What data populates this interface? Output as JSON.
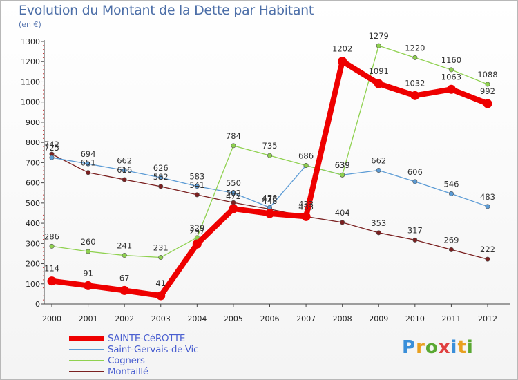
{
  "header": {
    "title": "Evolution du Montant de la Dette par Habitant",
    "subtitle": "(en €)"
  },
  "brand": {
    "letters": [
      "P",
      "r",
      "o",
      "x",
      "i",
      "t",
      "i"
    ],
    "colors": [
      "#3a8fd9",
      "#e8a020",
      "#5aa832",
      "#e04040",
      "#3a8fd9",
      "#e8a020",
      "#5aa832"
    ]
  },
  "chart_data": {
    "type": "line",
    "title": "Evolution du Montant de la Dette par Habitant",
    "ylabel": "(en €)",
    "x": [
      "2000",
      "2001",
      "2002",
      "2003",
      "2004",
      "2005",
      "2006",
      "2007",
      "2008",
      "2009",
      "2010",
      "2011",
      "2012"
    ],
    "ylim": [
      0,
      1300
    ],
    "yticks": [
      0,
      100,
      200,
      300,
      400,
      500,
      600,
      700,
      800,
      900,
      1000,
      1100,
      1200,
      1300
    ],
    "grid": false,
    "legend": "bottom-left",
    "series": [
      {
        "name": "Montaillé",
        "color": "#7a2020",
        "values": [
          742,
          651,
          616,
          582,
          541,
          502,
          470,
          433,
          404,
          353,
          317,
          269,
          222
        ],
        "labels": [
          "742",
          "651",
          "616",
          "582",
          "541",
          "502",
          "470",
          "433",
          "404",
          "353",
          "317",
          "269",
          "222"
        ]
      },
      {
        "name": "Saint-Gervais-de-Vic",
        "color": "#5b9bd5",
        "values": [
          725,
          694,
          662,
          626,
          583,
          550,
          478,
          686,
          639,
          662,
          606,
          546,
          483
        ],
        "labels": [
          "725",
          "694",
          "662",
          "626",
          "583",
          "550",
          "478",
          "686",
          "639",
          "662",
          "606",
          "546",
          "483"
        ]
      },
      {
        "name": "Cogners",
        "color": "#8fd14f",
        "values": [
          286,
          260,
          241,
          231,
          329,
          784,
          735,
          686,
          639,
          1279,
          1220,
          1160,
          1088
        ],
        "labels": [
          "286",
          "260",
          "241",
          "231",
          "329",
          "784",
          "735",
          "686",
          "639",
          "1279",
          "1220",
          "1160",
          "1088"
        ]
      },
      {
        "name": "SAINTE-CéROTTE",
        "color": "#ee0000",
        "values": [
          114,
          91,
          67,
          41,
          297,
          472,
          448,
          433,
          1202,
          1091,
          1032,
          1063,
          992
        ],
        "labels": [
          "114",
          "91",
          "67",
          "41",
          "297",
          "472",
          "448",
          "433",
          "1202",
          "1091",
          "1032",
          "1063",
          "992"
        ]
      }
    ],
    "legend_order": [
      "SAINTE-CéROTTE",
      "Saint-Gervais-de-Vic",
      "Cogners",
      "Montaillé"
    ]
  }
}
